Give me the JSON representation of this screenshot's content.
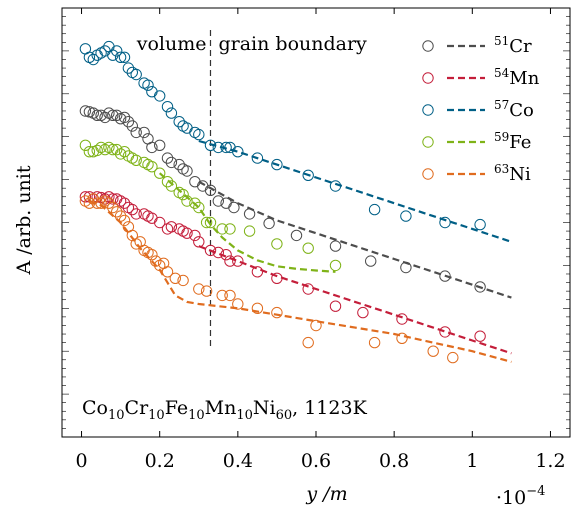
{
  "chart_data": {
    "type": "scatter",
    "title": "",
    "xlabel": "y /m",
    "ylabel": "A /arb. unit",
    "x_multiplier_label": "·10",
    "x_multiplier_exponent": "−4",
    "xlim": [
      -0.05,
      1.25
    ],
    "ylim": [
      0,
      10
    ],
    "x_ticks": [
      0,
      0.2,
      0.4,
      0.6,
      0.8,
      1,
      1.2
    ],
    "x_tick_labels": [
      "0",
      "0.2",
      "0.4",
      "0.6",
      "0.8",
      "1",
      "1.2"
    ],
    "y_ticks": "unlabeled minor ticks",
    "grid": false,
    "legend_position": "top-right",
    "annotation": "Co10Cr10Fe10Mn10Ni60, 1123K",
    "boundary": {
      "x": 0.33,
      "label_left": "volume",
      "label_right": "grain boundary"
    },
    "series": [
      {
        "name": "Cr",
        "mass": "51",
        "color": "#4d4d4d",
        "points": [
          [
            0.01,
            7.6
          ],
          [
            0.02,
            7.58
          ],
          [
            0.03,
            7.55
          ],
          [
            0.04,
            7.5
          ],
          [
            0.05,
            7.5
          ],
          [
            0.06,
            7.45
          ],
          [
            0.07,
            7.55
          ],
          [
            0.08,
            7.5
          ],
          [
            0.09,
            7.5
          ],
          [
            0.1,
            7.42
          ],
          [
            0.11,
            7.45
          ],
          [
            0.12,
            7.35
          ],
          [
            0.13,
            7.25
          ],
          [
            0.14,
            7.1
          ],
          [
            0.16,
            7.1
          ],
          [
            0.17,
            6.95
          ],
          [
            0.18,
            6.75
          ],
          [
            0.2,
            6.8
          ],
          [
            0.22,
            6.5
          ],
          [
            0.23,
            6.4
          ],
          [
            0.25,
            6.35
          ],
          [
            0.26,
            6.25
          ],
          [
            0.27,
            6.2
          ],
          [
            0.29,
            5.95
          ],
          [
            0.31,
            5.85
          ],
          [
            0.33,
            5.75
          ],
          [
            0.35,
            5.5
          ],
          [
            0.37,
            5.45
          ],
          [
            0.39,
            5.35
          ],
          [
            0.43,
            5.2
          ],
          [
            0.48,
            4.98
          ],
          [
            0.55,
            4.7
          ],
          [
            0.65,
            4.45
          ],
          [
            0.74,
            4.1
          ],
          [
            0.83,
            3.95
          ],
          [
            0.93,
            3.75
          ],
          [
            1.02,
            3.5
          ]
        ],
        "fit": [
          [
            0.3,
            5.95
          ],
          [
            0.4,
            5.45
          ],
          [
            0.5,
            5.05
          ],
          [
            0.6,
            4.75
          ],
          [
            0.7,
            4.45
          ],
          [
            0.8,
            4.15
          ],
          [
            0.9,
            3.85
          ],
          [
            1.0,
            3.55
          ],
          [
            1.1,
            3.25
          ]
        ]
      },
      {
        "name": "Mn",
        "mass": "54",
        "color": "#c41e3a",
        "points": [
          [
            0.01,
            5.6
          ],
          [
            0.02,
            5.6
          ],
          [
            0.03,
            5.55
          ],
          [
            0.04,
            5.6
          ],
          [
            0.05,
            5.58
          ],
          [
            0.06,
            5.55
          ],
          [
            0.07,
            5.6
          ],
          [
            0.08,
            5.55
          ],
          [
            0.09,
            5.55
          ],
          [
            0.1,
            5.5
          ],
          [
            0.11,
            5.45
          ],
          [
            0.12,
            5.35
          ],
          [
            0.13,
            5.3
          ],
          [
            0.14,
            5.2
          ],
          [
            0.16,
            5.2
          ],
          [
            0.17,
            5.15
          ],
          [
            0.18,
            5.1
          ],
          [
            0.2,
            5.0
          ],
          [
            0.22,
            4.85
          ],
          [
            0.23,
            4.9
          ],
          [
            0.25,
            4.85
          ],
          [
            0.26,
            4.8
          ],
          [
            0.27,
            4.75
          ],
          [
            0.29,
            4.7
          ],
          [
            0.3,
            4.55
          ],
          [
            0.33,
            4.35
          ],
          [
            0.35,
            4.3
          ],
          [
            0.37,
            4.25
          ],
          [
            0.38,
            4.1
          ],
          [
            0.4,
            4.1
          ],
          [
            0.45,
            3.85
          ],
          [
            0.5,
            3.7
          ],
          [
            0.58,
            3.45
          ],
          [
            0.65,
            3.05
          ],
          [
            0.72,
            2.9
          ],
          [
            0.82,
            2.75
          ],
          [
            0.93,
            2.45
          ],
          [
            1.02,
            2.35
          ]
        ],
        "fit": [
          [
            0.3,
            4.45
          ],
          [
            0.4,
            4.1
          ],
          [
            0.5,
            3.75
          ],
          [
            0.6,
            3.45
          ],
          [
            0.7,
            3.15
          ],
          [
            0.8,
            2.85
          ],
          [
            0.9,
            2.55
          ],
          [
            1.0,
            2.25
          ],
          [
            1.1,
            1.95
          ]
        ]
      },
      {
        "name": "Co",
        "mass": "57",
        "color": "#005f86",
        "points": [
          [
            0.01,
            9.05
          ],
          [
            0.02,
            8.85
          ],
          [
            0.03,
            8.8
          ],
          [
            0.04,
            8.9
          ],
          [
            0.05,
            8.95
          ],
          [
            0.06,
            9.0
          ],
          [
            0.07,
            9.1
          ],
          [
            0.08,
            8.9
          ],
          [
            0.09,
            9.0
          ],
          [
            0.1,
            8.85
          ],
          [
            0.11,
            8.85
          ],
          [
            0.12,
            8.6
          ],
          [
            0.13,
            8.5
          ],
          [
            0.14,
            8.45
          ],
          [
            0.16,
            8.25
          ],
          [
            0.17,
            8.2
          ],
          [
            0.18,
            8.05
          ],
          [
            0.2,
            7.95
          ],
          [
            0.22,
            7.7
          ],
          [
            0.23,
            7.55
          ],
          [
            0.25,
            7.35
          ],
          [
            0.26,
            7.25
          ],
          [
            0.27,
            7.2
          ],
          [
            0.29,
            7.1
          ],
          [
            0.3,
            7.05
          ],
          [
            0.33,
            6.8
          ],
          [
            0.35,
            6.75
          ],
          [
            0.37,
            6.75
          ],
          [
            0.38,
            6.75
          ],
          [
            0.4,
            6.65
          ],
          [
            0.45,
            6.5
          ],
          [
            0.5,
            6.35
          ],
          [
            0.58,
            6.1
          ],
          [
            0.65,
            5.85
          ],
          [
            0.75,
            5.3
          ],
          [
            0.83,
            5.15
          ],
          [
            0.93,
            5.0
          ],
          [
            1.02,
            4.95
          ]
        ],
        "fit": [
          [
            0.3,
            6.9
          ],
          [
            0.4,
            6.65
          ],
          [
            0.5,
            6.35
          ],
          [
            0.6,
            6.05
          ],
          [
            0.7,
            5.75
          ],
          [
            0.8,
            5.45
          ],
          [
            0.9,
            5.15
          ],
          [
            1.0,
            4.85
          ],
          [
            1.1,
            4.55
          ]
        ]
      },
      {
        "name": "Fe",
        "mass": "59",
        "color": "#7fb318",
        "points": [
          [
            0.01,
            6.8
          ],
          [
            0.02,
            6.65
          ],
          [
            0.03,
            6.65
          ],
          [
            0.04,
            6.68
          ],
          [
            0.05,
            6.75
          ],
          [
            0.06,
            6.7
          ],
          [
            0.07,
            6.75
          ],
          [
            0.08,
            6.7
          ],
          [
            0.09,
            6.7
          ],
          [
            0.1,
            6.6
          ],
          [
            0.11,
            6.65
          ],
          [
            0.12,
            6.55
          ],
          [
            0.13,
            6.5
          ],
          [
            0.14,
            6.45
          ],
          [
            0.16,
            6.4
          ],
          [
            0.17,
            6.35
          ],
          [
            0.18,
            6.3
          ],
          [
            0.2,
            6.15
          ],
          [
            0.22,
            5.95
          ],
          [
            0.23,
            5.85
          ],
          [
            0.25,
            5.7
          ],
          [
            0.26,
            5.65
          ],
          [
            0.27,
            5.5
          ],
          [
            0.29,
            5.45
          ],
          [
            0.3,
            5.35
          ],
          [
            0.32,
            5.0
          ],
          [
            0.33,
            5.0
          ],
          [
            0.36,
            4.85
          ],
          [
            0.38,
            4.85
          ],
          [
            0.43,
            4.8
          ],
          [
            0.5,
            4.5
          ],
          [
            0.58,
            4.4
          ],
          [
            0.65,
            4.0
          ]
        ],
        "fit": [
          [
            0.2,
            6.15
          ],
          [
            0.25,
            5.75
          ],
          [
            0.3,
            5.35
          ],
          [
            0.33,
            4.95
          ],
          [
            0.36,
            4.65
          ],
          [
            0.4,
            4.35
          ],
          [
            0.45,
            4.12
          ],
          [
            0.5,
            3.98
          ],
          [
            0.55,
            3.92
          ],
          [
            0.6,
            3.88
          ],
          [
            0.65,
            3.85
          ]
        ]
      },
      {
        "name": "Ni",
        "mass": "63",
        "color": "#e06c1f",
        "points": [
          [
            0.01,
            5.5
          ],
          [
            0.02,
            5.45
          ],
          [
            0.03,
            5.55
          ],
          [
            0.04,
            5.45
          ],
          [
            0.05,
            5.45
          ],
          [
            0.06,
            5.5
          ],
          [
            0.07,
            5.45
          ],
          [
            0.08,
            5.35
          ],
          [
            0.09,
            5.25
          ],
          [
            0.1,
            5.15
          ],
          [
            0.11,
            5.05
          ],
          [
            0.12,
            4.9
          ],
          [
            0.13,
            4.7
          ],
          [
            0.14,
            4.5
          ],
          [
            0.15,
            4.55
          ],
          [
            0.16,
            4.35
          ],
          [
            0.17,
            4.3
          ],
          [
            0.18,
            4.25
          ],
          [
            0.19,
            4.1
          ],
          [
            0.2,
            4.0
          ],
          [
            0.21,
            4.05
          ],
          [
            0.22,
            3.85
          ],
          [
            0.24,
            3.7
          ],
          [
            0.26,
            3.65
          ],
          [
            0.3,
            3.45
          ],
          [
            0.32,
            3.4
          ],
          [
            0.36,
            3.3
          ],
          [
            0.38,
            3.3
          ],
          [
            0.4,
            3.1
          ],
          [
            0.45,
            3.0
          ],
          [
            0.5,
            2.9
          ],
          [
            0.58,
            2.2
          ],
          [
            0.6,
            2.6
          ],
          [
            0.75,
            2.2
          ],
          [
            0.82,
            2.3
          ],
          [
            0.9,
            2.0
          ],
          [
            0.95,
            1.85
          ]
        ],
        "fit": [
          [
            0.02,
            5.5
          ],
          [
            0.05,
            5.4
          ],
          [
            0.1,
            5.0
          ],
          [
            0.15,
            4.4
          ],
          [
            0.2,
            3.9
          ],
          [
            0.22,
            3.6
          ],
          [
            0.24,
            3.3
          ],
          [
            0.27,
            3.15
          ],
          [
            0.3,
            3.1
          ],
          [
            0.35,
            3.05
          ],
          [
            0.4,
            3.0
          ],
          [
            0.5,
            2.85
          ],
          [
            0.6,
            2.7
          ],
          [
            0.7,
            2.55
          ],
          [
            0.8,
            2.4
          ],
          [
            0.9,
            2.2
          ],
          [
            1.0,
            2.0
          ],
          [
            1.1,
            1.75
          ]
        ]
      }
    ]
  }
}
